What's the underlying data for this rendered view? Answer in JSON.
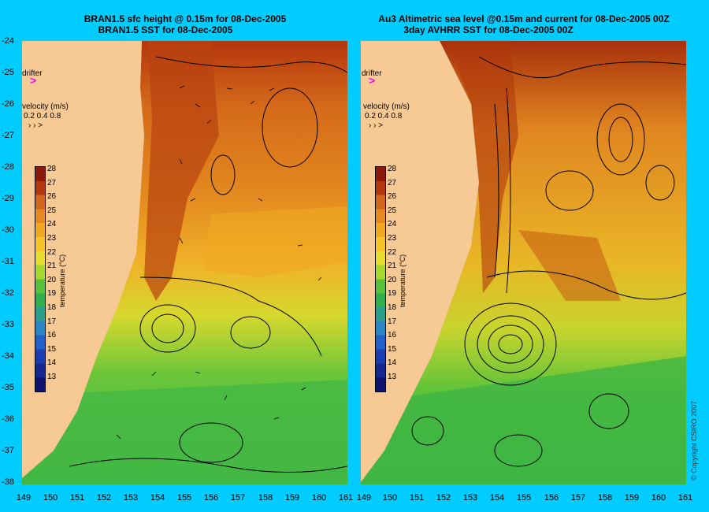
{
  "left": {
    "title1": "BRAN1.5 sfc height @ 0.15m for 08-Dec-2005",
    "title2": "BRAN1.5 SST for 08-Dec-2005"
  },
  "right": {
    "title1": "Au3 Altimetric sea level  @0.15m and current for 08-Dec-2005 00Z",
    "title2": "3day AVHRR SST for 08-Dec-2005 00Z"
  },
  "drifter_label": "drifter",
  "velocity_label": "velocity (m/s)",
  "velocity_values": "0.2 0.4 0.8",
  "colorbar": {
    "title": "temperature (°C)",
    "ticks": [
      "28",
      "27",
      "26",
      "25",
      "24",
      "23",
      "22",
      "21",
      "20",
      "19",
      "18",
      "17",
      "16",
      "15",
      "14",
      "13"
    ],
    "colors": [
      "#8b1a0a",
      "#b4360e",
      "#d0661a",
      "#e58a1e",
      "#f0a823",
      "#f4c428",
      "#e8dd2a",
      "#a8d830",
      "#55c23a",
      "#2fae4a",
      "#29a08a",
      "#2a86c4",
      "#2060c8",
      "#1a3cb0",
      "#162890",
      "#101470"
    ]
  },
  "y_ticks": [
    "-24",
    "-25",
    "-26",
    "-27",
    "-28",
    "-29",
    "-30",
    "-31",
    "-32",
    "-33",
    "-34",
    "-35",
    "-36",
    "-37",
    "-38"
  ],
  "x_ticks": [
    "149",
    "150",
    "151",
    "152",
    "153",
    "154",
    "155",
    "156",
    "157",
    "158",
    "159",
    "160",
    "161"
  ],
  "copyright": "© Copyright CSIRO 2007"
}
